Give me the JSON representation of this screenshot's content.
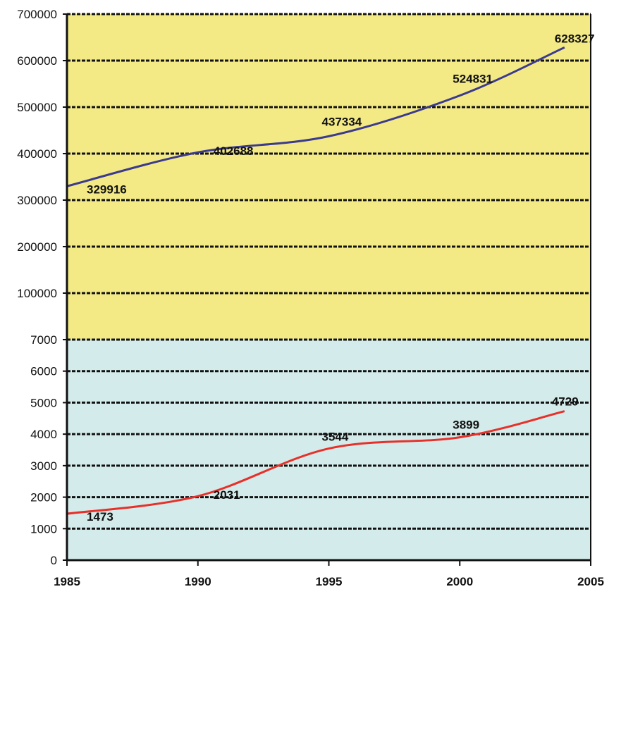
{
  "chart_data": [
    {
      "type": "line",
      "panel": "top",
      "background": "#f3ea86",
      "line_color": "#3b3a8f",
      "x": [
        1985,
        1990,
        1995,
        2000,
        2004
      ],
      "values": [
        329916,
        402688,
        437334,
        524831,
        628327
      ],
      "data_labels": [
        "329916",
        "402688",
        "437334",
        "524831",
        "628327"
      ],
      "ylim": [
        0,
        700000
      ],
      "yticks": [
        700000,
        600000,
        500000,
        400000,
        300000,
        200000,
        100000
      ],
      "ytick_labels": [
        "700000",
        "600000",
        "500000",
        "400000",
        "300000",
        "200000",
        "100000"
      ],
      "grid": true,
      "grid_style": "dashed"
    },
    {
      "type": "line",
      "panel": "bottom",
      "background": "#d3ebea",
      "line_color": "#e8302a",
      "x": [
        1985,
        1990,
        1995,
        2000,
        2004
      ],
      "values": [
        1473,
        2031,
        3544,
        3899,
        4729
      ],
      "data_labels": [
        "1473",
        "2031",
        "3544",
        "3899",
        "4729"
      ],
      "ylim": [
        0,
        7000
      ],
      "yticks": [
        7000,
        6000,
        5000,
        4000,
        3000,
        2000,
        1000,
        0
      ],
      "ytick_labels": [
        "7000",
        "6000",
        "5000",
        "4000",
        "3000",
        "2000",
        "1000",
        "0"
      ],
      "grid": true,
      "grid_style": "dashed"
    }
  ],
  "x_axis": {
    "ticks": [
      1985,
      1990,
      1995,
      2000,
      2005
    ],
    "tick_labels": [
      "1985",
      "1990",
      "1995",
      "2000",
      "2005"
    ],
    "xlim": [
      1985,
      2005
    ]
  }
}
